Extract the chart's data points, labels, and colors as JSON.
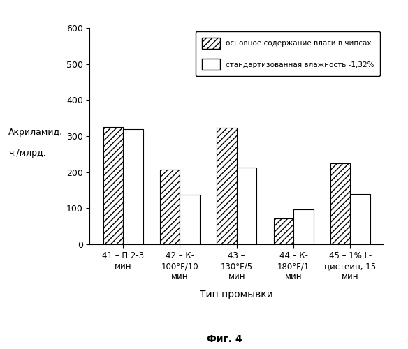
{
  "categories": [
    "41 – П 2-3\nмин",
    "42 – К-\n100°F/10\nмин",
    "43 –\n130°F/5\nмин",
    "44 – К-\n180°F/1\nмин",
    "45 – 1% L-\nцистеин, 15\nмин"
  ],
  "series1": [
    325,
    207,
    323,
    72,
    225
  ],
  "series2": [
    320,
    138,
    212,
    97,
    140
  ],
  "ylim": [
    0,
    600
  ],
  "yticks": [
    0,
    100,
    200,
    300,
    400,
    500,
    600
  ],
  "ylabel_line1": "Акриламид,",
  "ylabel_line2": "ч./млрд.",
  "xlabel": "Тип промывки",
  "legend1": "основное содержание влаги в чипсах",
  "legend2": "стандартизованная влажность -1,32%",
  "figure_label": "Фиг. 4",
  "hatch_pattern": "////",
  "bar_width": 0.35,
  "background_color": "#ffffff",
  "bar_edge_color": "#000000"
}
